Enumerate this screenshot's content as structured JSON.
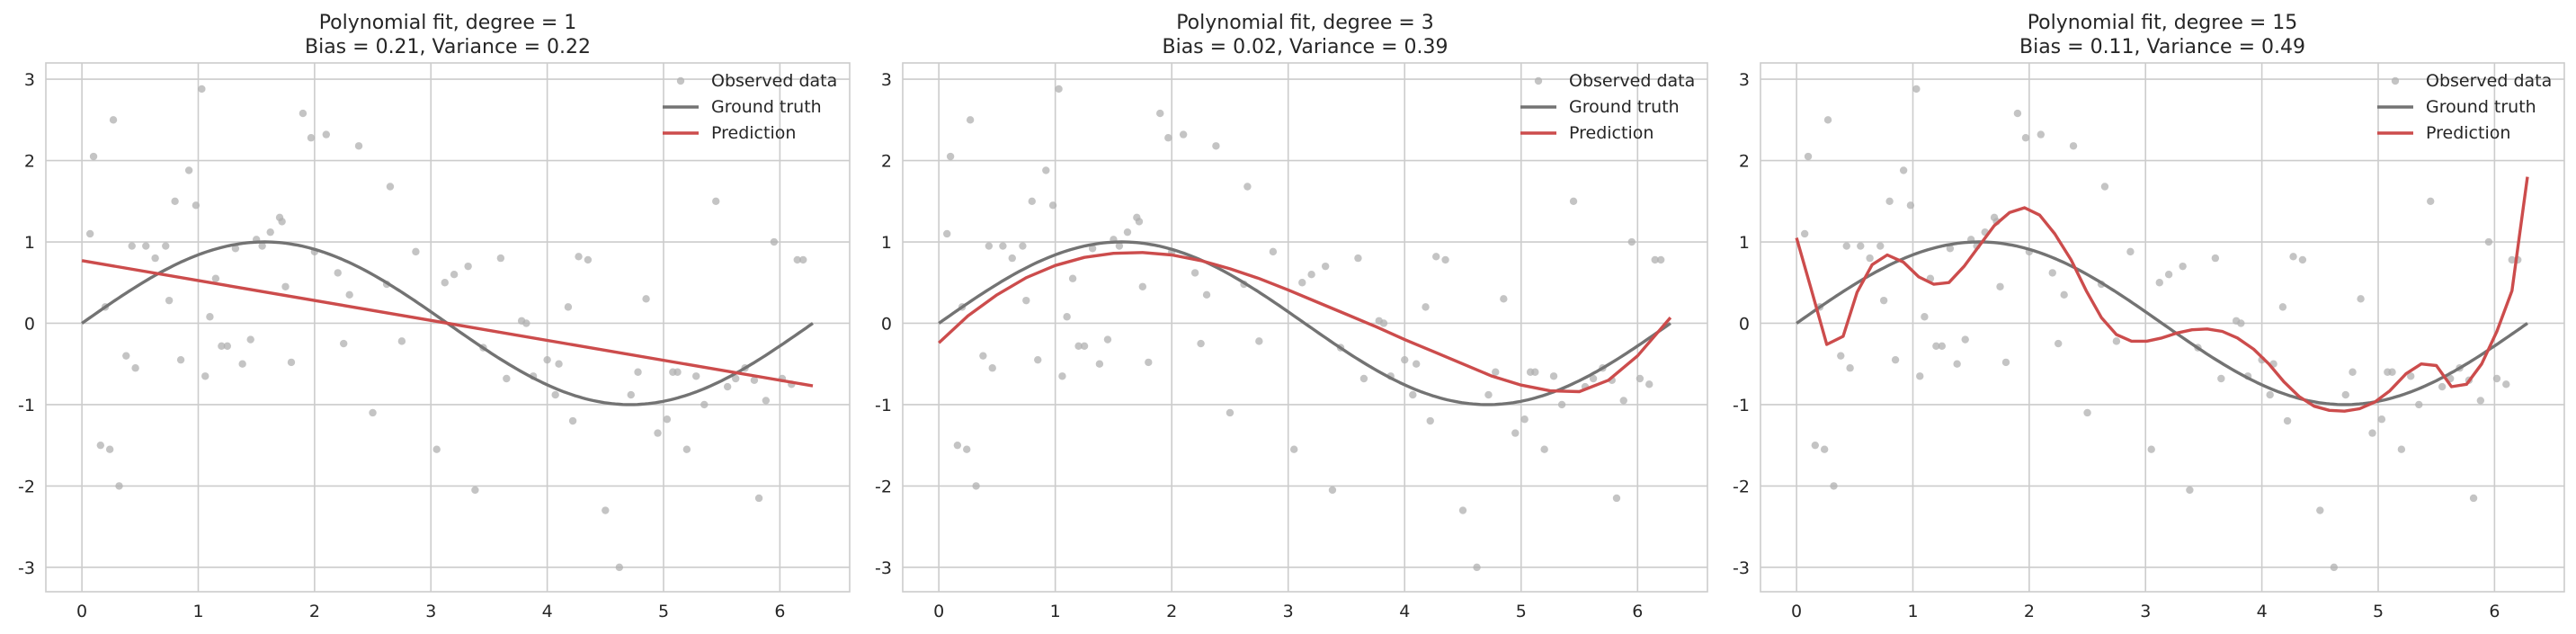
{
  "chart_data": [
    {
      "type": "line",
      "title": "Polynomial fit, degree = 1",
      "subtitle": "Bias = 0.21, Variance = 0.22",
      "xlabel": "",
      "ylabel": "",
      "xlim": [
        -0.31,
        6.6
      ],
      "ylim": [
        -3.3,
        3.2
      ],
      "xticks": [
        0,
        1,
        2,
        3,
        4,
        5,
        6
      ],
      "yticks": [
        -3,
        -2,
        -1,
        0,
        1,
        2,
        3
      ],
      "grid": true,
      "legend_position": "top-right",
      "legend": [
        "Observed data",
        "Ground truth",
        "Prediction"
      ],
      "colors": {
        "observed": "#b0b0b0",
        "truth": "#737373",
        "prediction": "#cc4c4c"
      },
      "observed": {
        "name": "Observed data",
        "x": [
          0.07,
          0.1,
          0.16,
          0.2,
          0.24,
          0.27,
          0.32,
          0.38,
          0.43,
          0.46,
          0.55,
          0.63,
          0.72,
          0.75,
          0.8,
          0.85,
          0.92,
          0.98,
          1.03,
          1.06,
          1.1,
          1.15,
          1.2,
          1.25,
          1.32,
          1.38,
          1.45,
          1.5,
          1.55,
          1.62,
          1.7,
          1.72,
          1.75,
          1.8,
          1.9,
          1.97,
          2.0,
          2.1,
          2.2,
          2.25,
          2.3,
          2.38,
          2.5,
          2.62,
          2.65,
          2.75,
          2.87,
          3.05,
          3.12,
          3.2,
          3.32,
          3.38,
          3.45,
          3.6,
          3.65,
          3.78,
          3.82,
          3.88,
          4.0,
          4.07,
          4.1,
          4.18,
          4.22,
          4.27,
          4.35,
          4.5,
          4.62,
          4.72,
          4.78,
          4.85,
          4.95,
          5.03,
          5.08,
          5.12,
          5.2,
          5.28,
          5.35,
          5.45,
          5.55,
          5.62,
          5.7,
          5.78,
          5.82,
          5.88,
          5.95,
          6.02,
          6.1,
          6.15,
          6.2
        ],
        "y": [
          1.1,
          2.05,
          -1.5,
          0.2,
          -1.55,
          2.5,
          -2.0,
          -0.4,
          0.95,
          -0.55,
          0.95,
          0.8,
          0.95,
          0.28,
          1.5,
          -0.45,
          1.88,
          1.45,
          2.88,
          -0.65,
          0.08,
          0.55,
          -0.28,
          -0.28,
          0.92,
          -0.5,
          -0.2,
          1.03,
          0.95,
          1.12,
          1.3,
          1.25,
          0.45,
          -0.48,
          2.58,
          2.28,
          0.88,
          2.32,
          0.62,
          -0.25,
          0.35,
          2.18,
          -1.1,
          0.48,
          1.68,
          -0.22,
          0.88,
          -1.55,
          0.5,
          0.6,
          0.7,
          -2.05,
          -0.3,
          0.8,
          -0.68,
          0.03,
          0.0,
          -0.65,
          -0.45,
          -0.88,
          -0.5,
          0.2,
          -1.2,
          0.82,
          0.78,
          -2.3,
          -3.0,
          -0.88,
          -0.6,
          0.3,
          -1.35,
          -1.18,
          -0.6,
          -0.6,
          -1.55,
          -0.65,
          -1.0,
          1.5,
          -0.78,
          -0.68,
          -0.55,
          -0.7,
          -2.15,
          -0.95,
          1.0,
          -0.68,
          -0.75,
          0.78,
          0.78
        ]
      },
      "ground_truth": {
        "name": "Ground truth",
        "function": "sin(x)",
        "x_range": [
          0,
          6.283
        ]
      },
      "prediction": {
        "name": "Prediction",
        "x": [
          0,
          6.283
        ],
        "y": [
          0.77,
          -0.77
        ]
      }
    },
    {
      "type": "line",
      "title": "Polynomial fit, degree = 3",
      "subtitle": "Bias = 0.02, Variance = 0.39",
      "xlabel": "",
      "ylabel": "",
      "xlim": [
        -0.31,
        6.6
      ],
      "ylim": [
        -3.3,
        3.2
      ],
      "xticks": [
        0,
        1,
        2,
        3,
        4,
        5,
        6
      ],
      "yticks": [
        -3,
        -2,
        -1,
        0,
        1,
        2,
        3
      ],
      "grid": true,
      "legend_position": "top-right",
      "legend": [
        "Observed data",
        "Ground truth",
        "Prediction"
      ],
      "colors": {
        "observed": "#b0b0b0",
        "truth": "#737373",
        "prediction": "#cc4c4c"
      },
      "observed": {
        "name": "Observed data",
        "x": [
          0.07,
          0.1,
          0.16,
          0.2,
          0.24,
          0.27,
          0.32,
          0.38,
          0.43,
          0.46,
          0.55,
          0.63,
          0.72,
          0.75,
          0.8,
          0.85,
          0.92,
          0.98,
          1.03,
          1.06,
          1.1,
          1.15,
          1.2,
          1.25,
          1.32,
          1.38,
          1.45,
          1.5,
          1.55,
          1.62,
          1.7,
          1.72,
          1.75,
          1.8,
          1.9,
          1.97,
          2.0,
          2.1,
          2.2,
          2.25,
          2.3,
          2.38,
          2.5,
          2.62,
          2.65,
          2.75,
          2.87,
          3.05,
          3.12,
          3.2,
          3.32,
          3.38,
          3.45,
          3.6,
          3.65,
          3.78,
          3.82,
          3.88,
          4.0,
          4.07,
          4.1,
          4.18,
          4.22,
          4.27,
          4.35,
          4.5,
          4.62,
          4.72,
          4.78,
          4.85,
          4.95,
          5.03,
          5.08,
          5.12,
          5.2,
          5.28,
          5.35,
          5.45,
          5.55,
          5.62,
          5.7,
          5.78,
          5.82,
          5.88,
          5.95,
          6.02,
          6.1,
          6.15,
          6.2
        ],
        "y": [
          1.1,
          2.05,
          -1.5,
          0.2,
          -1.55,
          2.5,
          -2.0,
          -0.4,
          0.95,
          -0.55,
          0.95,
          0.8,
          0.95,
          0.28,
          1.5,
          -0.45,
          1.88,
          1.45,
          2.88,
          -0.65,
          0.08,
          0.55,
          -0.28,
          -0.28,
          0.92,
          -0.5,
          -0.2,
          1.03,
          0.95,
          1.12,
          1.3,
          1.25,
          0.45,
          -0.48,
          2.58,
          2.28,
          0.88,
          2.32,
          0.62,
          -0.25,
          0.35,
          2.18,
          -1.1,
          0.48,
          1.68,
          -0.22,
          0.88,
          -1.55,
          0.5,
          0.6,
          0.7,
          -2.05,
          -0.3,
          0.8,
          -0.68,
          0.03,
          0.0,
          -0.65,
          -0.45,
          -0.88,
          -0.5,
          0.2,
          -1.2,
          0.82,
          0.78,
          -2.3,
          -3.0,
          -0.88,
          -0.6,
          0.3,
          -1.35,
          -1.18,
          -0.6,
          -0.6,
          -1.55,
          -0.65,
          -1.0,
          1.5,
          -0.78,
          -0.68,
          -0.55,
          -0.7,
          -2.15,
          -0.95,
          1.0,
          -0.68,
          -0.75,
          0.78,
          0.78
        ]
      },
      "ground_truth": {
        "name": "Ground truth",
        "function": "sin(x)",
        "x_range": [
          0,
          6.283
        ]
      },
      "prediction": {
        "name": "Prediction",
        "x": [
          0,
          0.25,
          0.5,
          0.75,
          1.0,
          1.25,
          1.5,
          1.75,
          2.0,
          2.25,
          2.5,
          2.75,
          3.0,
          3.25,
          3.5,
          3.75,
          4.0,
          4.25,
          4.5,
          4.75,
          5.0,
          5.25,
          5.5,
          5.75,
          6.0,
          6.283
        ],
        "y": [
          -0.24,
          0.09,
          0.35,
          0.56,
          0.71,
          0.81,
          0.86,
          0.87,
          0.84,
          0.77,
          0.67,
          0.55,
          0.41,
          0.26,
          0.11,
          -0.04,
          -0.2,
          -0.35,
          -0.5,
          -0.65,
          -0.76,
          -0.83,
          -0.84,
          -0.7,
          -0.4,
          0.07
        ]
      }
    },
    {
      "type": "line",
      "title": "Polynomial fit, degree = 15",
      "subtitle": "Bias = 0.11, Variance = 0.49",
      "xlabel": "",
      "ylabel": "",
      "xlim": [
        -0.31,
        6.6
      ],
      "ylim": [
        -3.3,
        3.2
      ],
      "xticks": [
        0,
        1,
        2,
        3,
        4,
        5,
        6
      ],
      "yticks": [
        -3,
        -2,
        -1,
        0,
        1,
        2,
        3
      ],
      "grid": true,
      "legend_position": "top-right",
      "legend": [
        "Observed data",
        "Ground truth",
        "Prediction"
      ],
      "colors": {
        "observed": "#b0b0b0",
        "truth": "#737373",
        "prediction": "#cc4c4c"
      },
      "observed": {
        "name": "Observed data",
        "x": [
          0.07,
          0.1,
          0.16,
          0.2,
          0.24,
          0.27,
          0.32,
          0.38,
          0.43,
          0.46,
          0.55,
          0.63,
          0.72,
          0.75,
          0.8,
          0.85,
          0.92,
          0.98,
          1.03,
          1.06,
          1.1,
          1.15,
          1.2,
          1.25,
          1.32,
          1.38,
          1.45,
          1.5,
          1.55,
          1.62,
          1.7,
          1.72,
          1.75,
          1.8,
          1.9,
          1.97,
          2.0,
          2.1,
          2.2,
          2.25,
          2.3,
          2.38,
          2.5,
          2.62,
          2.65,
          2.75,
          2.87,
          3.05,
          3.12,
          3.2,
          3.32,
          3.38,
          3.45,
          3.6,
          3.65,
          3.78,
          3.82,
          3.88,
          4.0,
          4.07,
          4.1,
          4.18,
          4.22,
          4.27,
          4.35,
          4.5,
          4.62,
          4.72,
          4.78,
          4.85,
          4.95,
          5.03,
          5.08,
          5.12,
          5.2,
          5.28,
          5.35,
          5.45,
          5.55,
          5.62,
          5.7,
          5.78,
          5.82,
          5.88,
          5.95,
          6.02,
          6.1,
          6.15,
          6.2
        ],
        "y": [
          1.1,
          2.05,
          -1.5,
          0.2,
          -1.55,
          2.5,
          -2.0,
          -0.4,
          0.95,
          -0.55,
          0.95,
          0.8,
          0.95,
          0.28,
          1.5,
          -0.45,
          1.88,
          1.45,
          2.88,
          -0.65,
          0.08,
          0.55,
          -0.28,
          -0.28,
          0.92,
          -0.5,
          -0.2,
          1.03,
          0.95,
          1.12,
          1.3,
          1.25,
          0.45,
          -0.48,
          2.58,
          2.28,
          0.88,
          2.32,
          0.62,
          -0.25,
          0.35,
          2.18,
          -1.1,
          0.48,
          1.68,
          -0.22,
          0.88,
          -1.55,
          0.5,
          0.6,
          0.7,
          -2.05,
          -0.3,
          0.8,
          -0.68,
          0.03,
          0.0,
          -0.65,
          -0.45,
          -0.88,
          -0.5,
          0.2,
          -1.2,
          0.82,
          0.78,
          -2.3,
          -3.0,
          -0.88,
          -0.6,
          0.3,
          -1.35,
          -1.18,
          -0.6,
          -0.6,
          -1.55,
          -0.65,
          -1.0,
          1.5,
          -0.78,
          -0.68,
          -0.55,
          -0.7,
          -2.15,
          -0.95,
          1.0,
          -0.68,
          -0.75,
          0.78,
          0.78
        ]
      },
      "ground_truth": {
        "name": "Ground truth",
        "function": "sin(x)",
        "x_range": [
          0,
          6.283
        ]
      },
      "prediction": {
        "name": "Prediction",
        "x": [
          0,
          0.13,
          0.26,
          0.4,
          0.52,
          0.65,
          0.78,
          0.92,
          1.05,
          1.18,
          1.31,
          1.44,
          1.57,
          1.7,
          1.83,
          1.96,
          2.09,
          2.22,
          2.36,
          2.49,
          2.62,
          2.75,
          2.88,
          3.01,
          3.14,
          3.27,
          3.4,
          3.53,
          3.66,
          3.79,
          3.93,
          4.06,
          4.19,
          4.32,
          4.45,
          4.58,
          4.71,
          4.84,
          4.97,
          5.1,
          5.24,
          5.37,
          5.5,
          5.63,
          5.76,
          5.89,
          6.02,
          6.15,
          6.283
        ],
        "y": [
          1.05,
          0.4,
          -0.26,
          -0.16,
          0.38,
          0.72,
          0.84,
          0.75,
          0.57,
          0.48,
          0.5,
          0.7,
          0.95,
          1.2,
          1.36,
          1.42,
          1.33,
          1.1,
          0.78,
          0.4,
          0.07,
          -0.14,
          -0.22,
          -0.22,
          -0.18,
          -0.12,
          -0.08,
          -0.07,
          -0.1,
          -0.18,
          -0.32,
          -0.5,
          -0.72,
          -0.9,
          -1.02,
          -1.07,
          -1.08,
          -1.05,
          -0.97,
          -0.83,
          -0.62,
          -0.5,
          -0.52,
          -0.78,
          -0.75,
          -0.5,
          -0.1,
          0.4,
          1.8
        ]
      }
    }
  ]
}
